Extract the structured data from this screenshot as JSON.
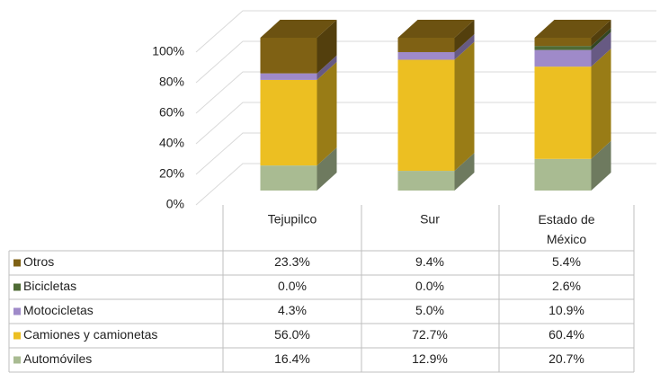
{
  "chart_data": {
    "type": "bar3d_stacked",
    "categories": [
      "Tejupilco",
      "Sur",
      "Estado de México"
    ],
    "series": [
      {
        "name": "Otros",
        "color": "#7f6114",
        "values": [
          23.3,
          9.4,
          5.4
        ],
        "value_labels": [
          "23.3%",
          "9.4%",
          "5.4%"
        ]
      },
      {
        "name": "Bicicletas",
        "color": "#4f6b35",
        "values": [
          0.0,
          0.0,
          2.6
        ],
        "value_labels": [
          "0.0%",
          "0.0%",
          "2.6%"
        ]
      },
      {
        "name": "Motocicletas",
        "color": "#9f8ac9",
        "values": [
          4.3,
          5.0,
          10.9
        ],
        "value_labels": [
          "4.3%",
          "5.0%",
          "10.9%"
        ]
      },
      {
        "name": "Camiones y camionetas",
        "color": "#ecbf22",
        "values": [
          56.0,
          72.7,
          60.4
        ],
        "value_labels": [
          "56.0%",
          "72.7%",
          "60.4%"
        ]
      },
      {
        "name": "Automóviles",
        "color": "#a9bb92",
        "values": [
          16.4,
          12.9,
          20.7
        ],
        "value_labels": [
          "16.4%",
          "12.9%",
          "20.7%"
        ]
      }
    ],
    "ylim": [
      0,
      100
    ],
    "yticks": [
      {
        "value": 0,
        "label": "0%"
      },
      {
        "value": 20,
        "label": "20%"
      },
      {
        "value": 40,
        "label": "40%"
      },
      {
        "value": 60,
        "label": "60%"
      },
      {
        "value": 80,
        "label": "80%"
      },
      {
        "value": 100,
        "label": "100%"
      }
    ],
    "grid": true
  }
}
